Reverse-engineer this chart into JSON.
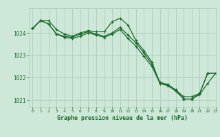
{
  "title": "Graphe pression niveau de la mer (hPa)",
  "background_color": "#cde8d8",
  "grid_color": "#a8c8b4",
  "line_color": "#1a6b2a",
  "xlim": [
    -0.5,
    23
  ],
  "ylim": [
    1020.7,
    1025.1
  ],
  "yticks": [
    1021,
    1022,
    1023,
    1024
  ],
  "xticks": [
    0,
    1,
    2,
    3,
    4,
    5,
    6,
    7,
    8,
    9,
    10,
    11,
    12,
    13,
    14,
    15,
    16,
    17,
    18,
    19,
    20,
    21,
    22,
    23
  ],
  "series": [
    {
      "x": [
        0,
        1,
        2,
        3,
        4,
        5,
        6,
        7,
        8,
        9,
        10,
        11,
        12,
        13,
        14,
        15,
        16,
        17,
        18,
        19,
        20,
        21,
        22,
        23
      ],
      "y": [
        1024.2,
        1024.55,
        1024.55,
        1024.15,
        1023.95,
        1023.85,
        1024.0,
        1024.1,
        1024.05,
        1024.05,
        1024.5,
        1024.65,
        1024.35,
        1023.65,
        1023.2,
        1022.7,
        1021.75,
        1021.65,
        1021.45,
        1021.15,
        1021.15,
        1021.3,
        1022.2,
        1022.2
      ]
    },
    {
      "x": [
        0,
        1,
        2,
        3,
        4,
        5,
        6,
        7,
        8,
        9,
        10,
        11,
        12,
        13,
        14,
        15,
        16,
        17,
        18,
        19,
        20,
        21,
        22,
        23
      ],
      "y": [
        1024.2,
        1024.55,
        1024.4,
        1023.95,
        1023.85,
        1023.8,
        1023.95,
        1024.05,
        1023.95,
        1023.85,
        1024.0,
        1024.25,
        1023.9,
        1023.55,
        1023.1,
        1022.6,
        1021.8,
        1021.7,
        1021.45,
        1021.05,
        1021.05,
        1021.3,
        1022.2,
        1022.2
      ]
    },
    {
      "x": [
        0,
        1,
        2,
        3,
        4,
        5,
        6,
        7,
        8,
        9,
        10,
        11,
        12,
        13,
        14,
        15,
        16,
        17,
        18,
        19,
        20,
        21,
        22,
        23
      ],
      "y": [
        1024.2,
        1024.55,
        1024.4,
        1023.95,
        1023.8,
        1023.75,
        1023.85,
        1024.0,
        1023.9,
        1023.8,
        1023.95,
        1024.15,
        1023.75,
        1023.4,
        1022.95,
        1022.5,
        1021.75,
        1021.65,
        1021.4,
        1021.05,
        1021.05,
        1021.25,
        1021.75,
        1022.2
      ]
    }
  ]
}
